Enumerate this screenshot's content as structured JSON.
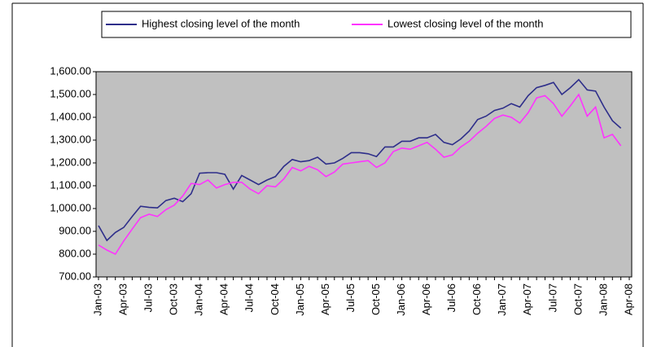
{
  "chart_data": {
    "type": "line",
    "categories": [
      "Jan-03",
      null,
      null,
      "Apr-03",
      null,
      null,
      "Jul-03",
      null,
      null,
      "Oct-03",
      null,
      null,
      "Jan-04",
      null,
      null,
      "Apr-04",
      null,
      null,
      "Jul-04",
      null,
      null,
      "Oct-04",
      null,
      null,
      "Jan-05",
      null,
      null,
      "Apr-05",
      null,
      null,
      "Jul-05",
      null,
      null,
      "Oct-05",
      null,
      null,
      "Jan-06",
      null,
      null,
      "Apr-06",
      null,
      null,
      "Jul-06",
      null,
      null,
      "Oct-06",
      null,
      null,
      "Jan-07",
      null,
      null,
      "Apr-07",
      null,
      null,
      "Jul-07",
      null,
      null,
      "Oct-07",
      null,
      null,
      "Jan-08",
      null,
      null,
      "Apr-08"
    ],
    "series": [
      {
        "name": "Highest closing level of the month",
        "color": "#2e2e8a",
        "values": [
          925,
          860,
          895,
          917,
          965,
          1010,
          1005,
          1003,
          1035,
          1045,
          1030,
          1065,
          1155,
          1157,
          1157,
          1150,
          1085,
          1145,
          1125,
          1105,
          1125,
          1140,
          1185,
          1215,
          1205,
          1210,
          1225,
          1195,
          1200,
          1220,
          1245,
          1245,
          1240,
          1228,
          1270,
          1270,
          1295,
          1295,
          1310,
          1310,
          1325,
          1290,
          1280,
          1305,
          1340,
          1390,
          1405,
          1430,
          1440,
          1460,
          1445,
          1495,
          1530,
          1540,
          1553,
          1500,
          1530,
          1565,
          1520,
          1515,
          1445,
          1385,
          1352,
          null
        ]
      },
      {
        "name": "Lowest closing level of the month",
        "color": "#ff33ff",
        "values": [
          840,
          818,
          800,
          858,
          910,
          960,
          975,
          965,
          995,
          1015,
          1055,
          1110,
          1105,
          1125,
          1090,
          1105,
          1115,
          1115,
          1085,
          1065,
          1100,
          1095,
          1130,
          1180,
          1165,
          1185,
          1170,
          1140,
          1160,
          1195,
          1200,
          1205,
          1210,
          1180,
          1200,
          1250,
          1265,
          1260,
          1275,
          1290,
          1260,
          1225,
          1235,
          1270,
          1295,
          1330,
          1360,
          1395,
          1410,
          1400,
          1375,
          1420,
          1485,
          1495,
          1460,
          1405,
          1450,
          1500,
          1405,
          1445,
          1310,
          1325,
          1275,
          null
        ]
      }
    ],
    "ylim": [
      700,
      1600
    ],
    "yticks": [
      {
        "value": 700,
        "label": "700.00"
      },
      {
        "value": 800,
        "label": "800.00"
      },
      {
        "value": 900,
        "label": "900.00"
      },
      {
        "value": 1000,
        "label": "1,000.00"
      },
      {
        "value": 1100,
        "label": "1,100.00"
      },
      {
        "value": 1200,
        "label": "1,200.00"
      },
      {
        "value": 1300,
        "label": "1,300.00"
      },
      {
        "value": 1400,
        "label": "1,400.00"
      },
      {
        "value": 1500,
        "label": "1,500.00"
      },
      {
        "value": 1600,
        "label": "1,600.00"
      }
    ],
    "grid": false,
    "legend": "top",
    "plot_background": "#c0c0c0"
  }
}
